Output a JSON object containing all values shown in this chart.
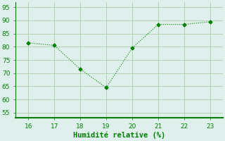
{
  "x": [
    16,
    17,
    18,
    19,
    20,
    21,
    22,
    23
  ],
  "y": [
    81.5,
    80.5,
    71.5,
    64.5,
    79.5,
    88.5,
    88.5,
    89.5
  ],
  "line_color": "#008000",
  "marker_style": "D",
  "marker_size": 2.5,
  "xlabel": "Humidité relative (%)",
  "xlabel_color": "#008000",
  "xlim": [
    15.5,
    23.5
  ],
  "ylim": [
    53,
    97
  ],
  "yticks": [
    55,
    60,
    65,
    70,
    75,
    80,
    85,
    90,
    95
  ],
  "xticks": [
    16,
    17,
    18,
    19,
    20,
    21,
    22,
    23
  ],
  "grid_color": "#aacfaa",
  "background_color": "#dff0ec",
  "tick_color": "#008000",
  "tick_fontsize": 6.5,
  "xlabel_fontsize": 7.5,
  "spine_color": "#008000"
}
